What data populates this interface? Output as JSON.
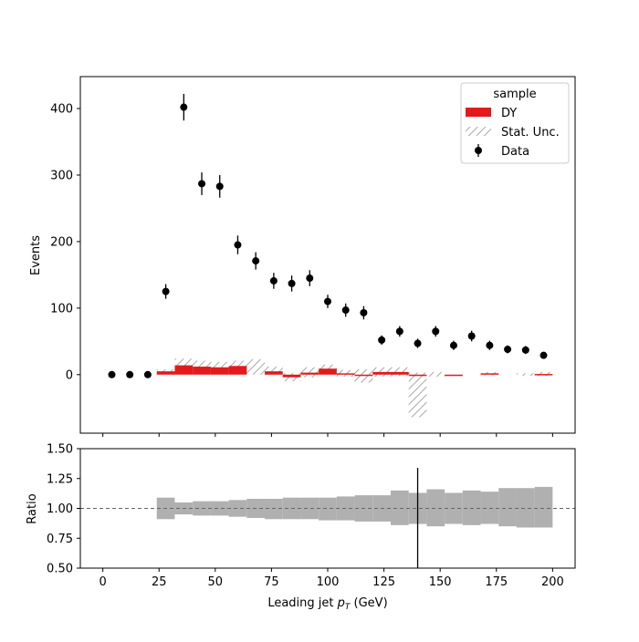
{
  "chart_data": {
    "type": "bar",
    "xlabel": "Leading jet  p_T (GeV)",
    "xlabel_main": "Leading jet  ",
    "xlabel_symbol": "p",
    "xlabel_sub": "T",
    "xlabel_unit": " (GeV)",
    "xlim": [
      -10,
      210
    ],
    "x_ticks": [
      0,
      25,
      50,
      75,
      100,
      125,
      150,
      175,
      200
    ],
    "grid": false,
    "main_panel": {
      "ylabel": "Events",
      "ylim": [
        -88,
        448
      ],
      "y_ticks": [
        0,
        100,
        200,
        300,
        400
      ],
      "legend": {
        "title": "sample",
        "placement": "top-right",
        "entries": [
          "DY",
          "Stat. Unc.",
          "Data"
        ]
      },
      "bin_edges": [
        0,
        8,
        16,
        24,
        32,
        40,
        48,
        56,
        64,
        72,
        80,
        88,
        96,
        104,
        112,
        120,
        128,
        136,
        144,
        152,
        160,
        168,
        176,
        184,
        192,
        200
      ],
      "series": [
        {
          "name": "DY",
          "kind": "histogram",
          "color": "#e31a1c",
          "values": [
            0,
            0,
            0,
            5,
            14,
            12,
            11,
            13,
            0,
            5,
            -4,
            3,
            9,
            2,
            -2,
            4,
            4,
            -2,
            0,
            -1,
            0,
            2,
            0,
            0,
            1
          ]
        },
        {
          "name": "Stat. Unc.",
          "kind": "hatched-band",
          "color": "#808080",
          "low": [
            0,
            0,
            0,
            2,
            4,
            3,
            2,
            5,
            0,
            0,
            -10,
            -4,
            4,
            -3,
            -12,
            -3,
            -2,
            -64,
            -3,
            -2,
            0,
            -1,
            0,
            -2,
            -2
          ],
          "high": [
            0,
            0,
            0,
            8,
            24,
            21,
            19,
            21,
            23,
            12,
            2,
            11,
            15,
            7,
            8,
            11,
            11,
            3,
            4,
            0,
            0,
            4,
            0,
            2,
            4
          ]
        },
        {
          "name": "Data",
          "kind": "points-with-errors",
          "color": "#000000",
          "x": [
            4,
            12,
            20,
            28,
            36,
            44,
            52,
            60,
            68,
            76,
            84,
            92,
            100,
            108,
            116,
            124,
            132,
            140,
            148,
            156,
            164,
            172,
            180,
            188,
            196
          ],
          "y": [
            0,
            0,
            0,
            125,
            402,
            287,
            283,
            195,
            171,
            141,
            137,
            145,
            110,
            97,
            93,
            52,
            65,
            47,
            65,
            44,
            58,
            44,
            38,
            37,
            29
          ],
          "y_err": [
            0,
            0,
            0,
            11,
            20,
            17,
            17,
            14,
            13,
            12,
            12,
            12,
            10,
            10,
            10,
            7,
            8,
            7,
            8,
            7,
            8,
            7,
            6,
            6,
            5
          ]
        }
      ]
    },
    "ratio_panel": {
      "ylabel": "Ratio",
      "ylim": [
        0.5,
        1.5
      ],
      "y_ticks": [
        "0.50",
        "0.75",
        "1.00",
        "1.25",
        "1.50"
      ],
      "reference_line": 1.0,
      "band_color": "#b0b0b0",
      "bin_edges": [
        24,
        32,
        40,
        48,
        56,
        64,
        72,
        80,
        88,
        96,
        104,
        112,
        120,
        128,
        136,
        144,
        152,
        160,
        168,
        176,
        184,
        192,
        200
      ],
      "band_low": [
        0.91,
        0.95,
        0.94,
        0.94,
        0.93,
        0.92,
        0.91,
        0.91,
        0.91,
        0.9,
        0.9,
        0.89,
        0.89,
        0.86,
        0.87,
        0.85,
        0.87,
        0.86,
        0.87,
        0.85,
        0.84,
        0.84,
        0.82
      ],
      "band_high": [
        1.09,
        1.05,
        1.06,
        1.06,
        1.07,
        1.08,
        1.08,
        1.09,
        1.09,
        1.09,
        1.1,
        1.11,
        1.11,
        1.15,
        1.13,
        1.16,
        1.13,
        1.15,
        1.14,
        1.17,
        1.17,
        1.18,
        1.22
      ],
      "markers": [
        {
          "x": 140,
          "y_low": 0.5,
          "y_high": 1.34
        }
      ]
    }
  }
}
